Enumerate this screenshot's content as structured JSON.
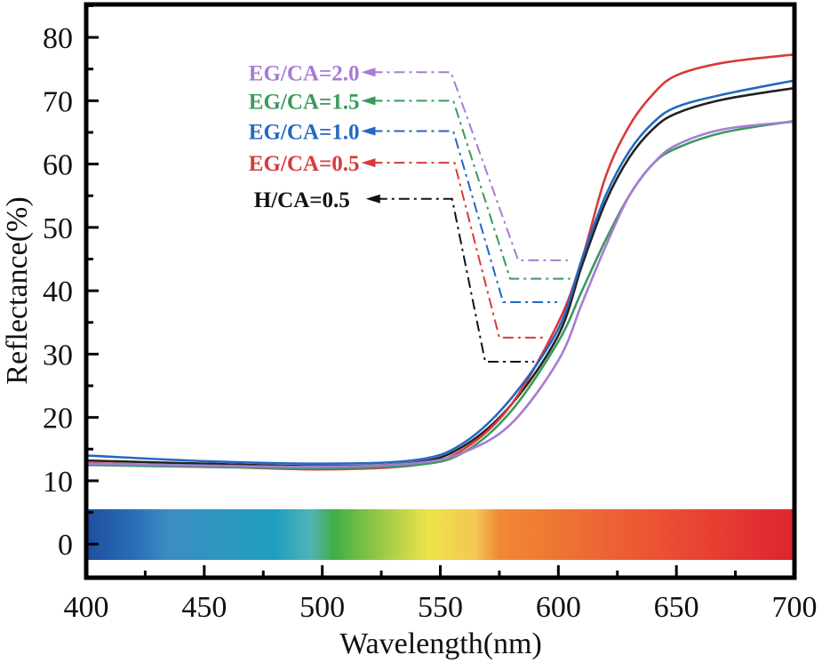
{
  "chart_data": {
    "type": "line",
    "xlabel": "Wavelength(nm)",
    "ylabel": "Reflectance(%)",
    "xlim": [
      400,
      700
    ],
    "ylim": [
      -5.3,
      85.2
    ],
    "xticks": [
      400,
      450,
      500,
      550,
      600,
      650,
      700
    ],
    "yticks": [
      0,
      10,
      20,
      30,
      40,
      50,
      60,
      70,
      80
    ],
    "grid": false,
    "legend": "none (labels with dash-dot leader arrows, upper-left)",
    "spectrum_bar": {
      "y_range": [
        -2.5,
        5.5
      ],
      "stops": [
        {
          "nm": 400,
          "color": "#1d4f9e"
        },
        {
          "nm": 420,
          "color": "#2a6cb6"
        },
        {
          "nm": 435,
          "color": "#3c8dc2"
        },
        {
          "nm": 480,
          "color": "#1f9fc0"
        },
        {
          "nm": 495,
          "color": "#50b4b8"
        },
        {
          "nm": 505,
          "color": "#3fae48"
        },
        {
          "nm": 520,
          "color": "#86c245"
        },
        {
          "nm": 545,
          "color": "#ede44a"
        },
        {
          "nm": 565,
          "color": "#f2c655"
        },
        {
          "nm": 575,
          "color": "#f08a34"
        },
        {
          "nm": 640,
          "color": "#ec5334"
        },
        {
          "nm": 700,
          "color": "#df2330"
        }
      ]
    },
    "x": [
      400,
      450,
      500,
      540,
      560,
      580,
      600,
      610,
      620,
      630,
      640,
      650,
      670,
      700
    ],
    "series": [
      {
        "name": "H/CA=0.5",
        "color": "#222222",
        "values": [
          13.2,
          12.7,
          12.3,
          12.9,
          15.5,
          22,
          33,
          44,
          54,
          61,
          65.5,
          68,
          70.2,
          72
        ]
      },
      {
        "name": "EG/CA=0.5",
        "color": "#d9393b",
        "values": [
          12.8,
          12.3,
          11.8,
          12.5,
          15,
          22,
          35,
          45,
          58,
          66,
          71,
          74,
          76,
          77.3
        ]
      },
      {
        "name": "EG/CA=1.0",
        "color": "#2468c0",
        "values": [
          14,
          13.1,
          12.7,
          13.3,
          16,
          23,
          34,
          45,
          55,
          62,
          66.5,
          69,
          71,
          73.2
        ]
      },
      {
        "name": "EG/CA=1.5",
        "color": "#3a9a5c",
        "values": [
          12.5,
          12.2,
          12,
          12.5,
          14.5,
          21,
          32,
          40,
          48,
          55,
          60,
          62.5,
          65,
          66.8
        ]
      },
      {
        "name": "EG/CA=2.0",
        "color": "#a77bd6",
        "values": [
          12.7,
          12.4,
          12.2,
          12.8,
          14.5,
          19,
          29,
          38,
          47,
          55,
          60,
          63,
          65.5,
          66.7
        ]
      }
    ],
    "annotations": [
      {
        "text": "EG/CA=2.0",
        "color": "#a77bd6",
        "path": [
          [
            521,
            74.5
          ],
          [
            554.5,
            74.5
          ],
          [
            583,
            44.8
          ],
          [
            604,
            44.8
          ]
        ]
      },
      {
        "text": "EG/CA=1.5",
        "color": "#3a9a5c",
        "path": [
          [
            521,
            70
          ],
          [
            555.5,
            70
          ],
          [
            579.6,
            41.9
          ],
          [
            605,
            41.9
          ]
        ]
      },
      {
        "text": "EG/CA=1.0",
        "color": "#2468c0",
        "path": [
          [
            521,
            65.2
          ],
          [
            555.5,
            65.2
          ],
          [
            576.6,
            38.2
          ],
          [
            599.5,
            38.2
          ]
        ]
      },
      {
        "text": "EG/CA=0.5",
        "color": "#d9393b",
        "path": [
          [
            521,
            60.2
          ],
          [
            556,
            60.2
          ],
          [
            575,
            32.6
          ],
          [
            594.6,
            32.6
          ]
        ]
      },
      {
        "text": "H/CA=0.5",
        "color": "#111111",
        "path": [
          [
            523,
            54.5
          ],
          [
            555,
            54.5
          ],
          [
            569,
            28.8
          ],
          [
            589.7,
            28.8
          ]
        ]
      }
    ]
  }
}
